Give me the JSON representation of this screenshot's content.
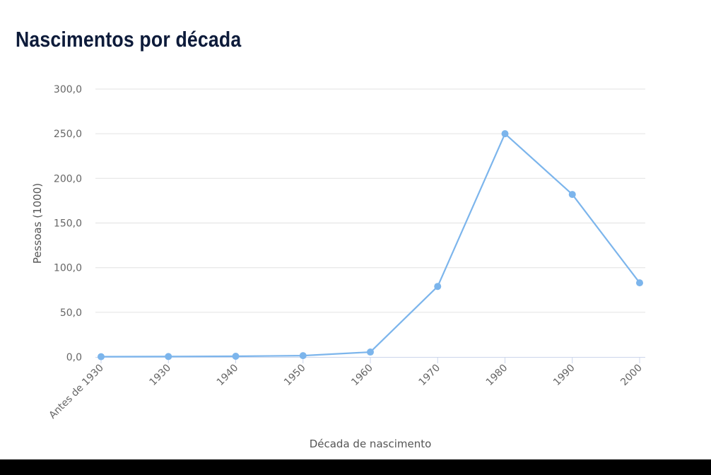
{
  "page": {
    "title": "Nascimentos por década"
  },
  "chart_data": {
    "type": "line",
    "title": "Nascimentos por década",
    "xlabel": "Década de nascimento",
    "ylabel": "Pessoas (1000)",
    "categories": [
      "Antes de 1930",
      "1930",
      "1940",
      "1950",
      "1960",
      "1970",
      "1980",
      "1990",
      "2000"
    ],
    "series": [
      {
        "values": [
          0.3,
          0.5,
          0.8,
          1.5,
          5.5,
          79,
          250,
          182,
          83
        ]
      }
    ],
    "ylim": [
      0,
      300
    ],
    "yticks": [
      "0,0",
      "50,0",
      "100,0",
      "150,0",
      "200,0",
      "250,0",
      "300,0"
    ],
    "grid": true,
    "color": "#7cb5ec"
  }
}
